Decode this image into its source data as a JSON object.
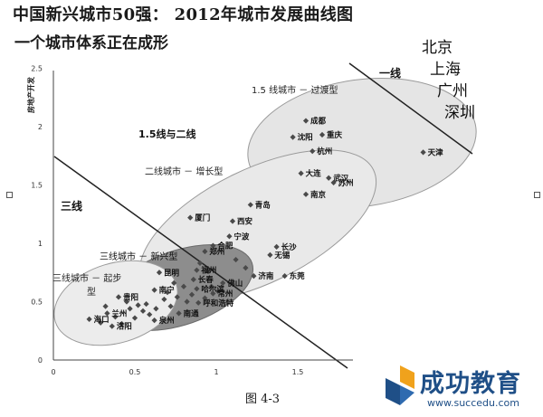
{
  "title": "中国新兴城市50强： 2012年城市发展曲线图",
  "subtitle": "一个城市体系正在成形",
  "caption": "图 4-3",
  "logo": {
    "name": "成功教育",
    "url": "www.succedu.com"
  },
  "chart_data": {
    "type": "scatter",
    "ylabel": "房地产开发",
    "xlabel": "",
    "xlim": [
      0,
      2.5
    ],
    "ylim": [
      0,
      2.5
    ],
    "xticks": [
      "0",
      "0.5",
      "1",
      "1.5"
    ],
    "yticks": [
      "0",
      "0.5",
      "1",
      "1.5",
      "2",
      "2.5"
    ],
    "grid": false,
    "tiers": [
      {
        "label": "一线",
        "cities": [
          "北京",
          "上海",
          "广州",
          "深圳"
        ]
      },
      {
        "label": "1.5 线城市 － 过渡型"
      },
      {
        "label": "二线城市 － 增长型"
      },
      {
        "label": "三线城市 － 新兴型"
      },
      {
        "label": "三线城市 － 起步型"
      },
      {
        "label": "1.5线与二线"
      },
      {
        "label": "三线"
      }
    ],
    "points": [
      {
        "name": "天津",
        "x": 2.27,
        "y": 1.78
      },
      {
        "name": "成都",
        "x": 1.55,
        "y": 2.05
      },
      {
        "name": "重庆",
        "x": 1.65,
        "y": 1.93
      },
      {
        "name": "沈阳",
        "x": 1.47,
        "y": 1.91
      },
      {
        "name": "杭州",
        "x": 1.59,
        "y": 1.79
      },
      {
        "name": "大连",
        "x": 1.52,
        "y": 1.6
      },
      {
        "name": "武汉",
        "x": 1.69,
        "y": 1.56
      },
      {
        "name": "苏州",
        "x": 1.72,
        "y": 1.52
      },
      {
        "name": "南京",
        "x": 1.55,
        "y": 1.42
      },
      {
        "name": "青岛",
        "x": 1.21,
        "y": 1.33
      },
      {
        "name": "厦门",
        "x": 0.84,
        "y": 1.22
      },
      {
        "name": "西安",
        "x": 1.1,
        "y": 1.19
      },
      {
        "name": "宁波",
        "x": 1.08,
        "y": 1.06
      },
      {
        "name": "合肥",
        "x": 0.98,
        "y": 0.98
      },
      {
        "name": "郑州",
        "x": 0.93,
        "y": 0.93
      },
      {
        "name": "长沙",
        "x": 1.37,
        "y": 0.97
      },
      {
        "name": "无锡",
        "x": 1.33,
        "y": 0.9
      },
      {
        "name": "昆明",
        "x": 0.65,
        "y": 0.75
      },
      {
        "name": "福州",
        "x": 0.88,
        "y": 0.77
      },
      {
        "name": "长春",
        "x": 0.86,
        "y": 0.69
      },
      {
        "name": "济南",
        "x": 1.23,
        "y": 0.72
      },
      {
        "name": "东莞",
        "x": 1.42,
        "y": 0.72
      },
      {
        "name": "佛山",
        "x": 1.04,
        "y": 0.66
      },
      {
        "name": "南宁",
        "x": 0.62,
        "y": 0.6
      },
      {
        "name": "哈尔滨",
        "x": 0.88,
        "y": 0.61
      },
      {
        "name": "常州",
        "x": 0.98,
        "y": 0.57
      },
      {
        "name": "贵阳",
        "x": 0.4,
        "y": 0.54
      },
      {
        "name": "呼和浩特",
        "x": 0.89,
        "y": 0.49
      },
      {
        "name": "南通",
        "x": 0.77,
        "y": 0.4
      },
      {
        "name": "兰州",
        "x": 0.33,
        "y": 0.4
      },
      {
        "name": "泉州",
        "x": 0.62,
        "y": 0.34
      },
      {
        "name": "海口",
        "x": 0.22,
        "y": 0.35
      },
      {
        "name": "洛阳",
        "x": 0.36,
        "y": 0.29
      }
    ],
    "unlabeled_points": [
      [
        0.45,
        0.5
      ],
      [
        0.47,
        0.44
      ],
      [
        0.52,
        0.47
      ],
      [
        0.55,
        0.42
      ],
      [
        0.57,
        0.48
      ],
      [
        0.59,
        0.39
      ],
      [
        0.63,
        0.44
      ],
      [
        0.68,
        0.52
      ],
      [
        0.7,
        0.58
      ],
      [
        0.72,
        0.46
      ],
      [
        0.74,
        0.66
      ],
      [
        0.76,
        0.54
      ],
      [
        0.8,
        0.63
      ],
      [
        0.82,
        0.5
      ],
      [
        0.85,
        0.56
      ],
      [
        0.9,
        0.83
      ],
      [
        0.95,
        0.76
      ],
      [
        0.93,
        0.53
      ],
      [
        0.97,
        0.63
      ],
      [
        1.01,
        0.59
      ],
      [
        1.12,
        0.86
      ],
      [
        1.18,
        0.79
      ],
      [
        0.32,
        0.46
      ],
      [
        0.38,
        0.37
      ],
      [
        0.29,
        0.32
      ],
      [
        0.5,
        0.36
      ],
      [
        0.42,
        0.31
      ]
    ]
  }
}
